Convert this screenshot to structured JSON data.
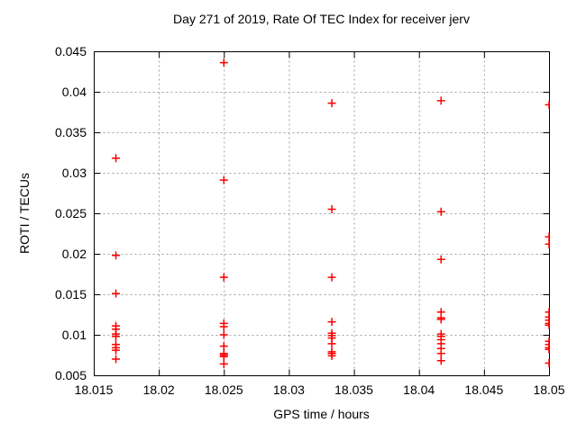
{
  "title": "Day 271 of 2019, Rate Of TEC Index for receiver jerv",
  "chart_data": {
    "type": "scatter",
    "title": "Day 271 of 2019, Rate Of TEC Index for receiver jerv",
    "xlabel": "GPS time / hours",
    "ylabel": "ROTI / TECUs",
    "xlim": [
      18.015,
      18.05
    ],
    "ylim": [
      0.005,
      0.045
    ],
    "x_tick_values": [
      18.015,
      18.02,
      18.025,
      18.03,
      18.035,
      18.04,
      18.045,
      18.05
    ],
    "x_tick_labels": [
      "18.015",
      "18.02",
      "18.025",
      "18.03",
      "18.035",
      "18.04",
      "18.045",
      "18.05"
    ],
    "y_tick_values": [
      0.005,
      0.01,
      0.015,
      0.02,
      0.025,
      0.03,
      0.035,
      0.04,
      0.045
    ],
    "y_tick_labels": [
      "0.005",
      "0.01",
      "0.015",
      "0.02",
      "0.025",
      "0.03",
      "0.035",
      "0.04",
      "0.045"
    ],
    "grid": true,
    "legend_position": "none",
    "marker": {
      "shape": "plus",
      "color": "#ff0000"
    },
    "grid_color": "#a0a0a0",
    "axis_color": "#000000",
    "series": [
      {
        "name": "ROTI",
        "points": [
          [
            18.0167,
            0.0318
          ],
          [
            18.0167,
            0.0198
          ],
          [
            18.0167,
            0.0151
          ],
          [
            18.0167,
            0.0111
          ],
          [
            18.0167,
            0.0107
          ],
          [
            18.0167,
            0.0101
          ],
          [
            18.0167,
            0.0098
          ],
          [
            18.0167,
            0.0088
          ],
          [
            18.0167,
            0.0084
          ],
          [
            18.0167,
            0.0081
          ],
          [
            18.0167,
            0.007
          ],
          [
            18.025,
            0.0436
          ],
          [
            18.025,
            0.0291
          ],
          [
            18.025,
            0.0171
          ],
          [
            18.025,
            0.0114
          ],
          [
            18.025,
            0.011
          ],
          [
            18.025,
            0.01
          ],
          [
            18.025,
            0.0086
          ],
          [
            18.025,
            0.0077
          ],
          [
            18.025,
            0.0075
          ],
          [
            18.025,
            0.0073
          ],
          [
            18.025,
            0.0064
          ],
          [
            18.0333,
            0.0386
          ],
          [
            18.0333,
            0.0255
          ],
          [
            18.0333,
            0.0171
          ],
          [
            18.0333,
            0.0116
          ],
          [
            18.0333,
            0.0102
          ],
          [
            18.0333,
            0.0099
          ],
          [
            18.0333,
            0.0096
          ],
          [
            18.0333,
            0.0089
          ],
          [
            18.0333,
            0.0079
          ],
          [
            18.0333,
            0.0077
          ],
          [
            18.0333,
            0.0074
          ],
          [
            18.0417,
            0.0389
          ],
          [
            18.0417,
            0.0252
          ],
          [
            18.0417,
            0.0193
          ],
          [
            18.0417,
            0.0128
          ],
          [
            18.0417,
            0.0121
          ],
          [
            18.0417,
            0.0119
          ],
          [
            18.0417,
            0.0101
          ],
          [
            18.0417,
            0.0098
          ],
          [
            18.0417,
            0.0094
          ],
          [
            18.0417,
            0.0089
          ],
          [
            18.0417,
            0.0083
          ],
          [
            18.0417,
            0.0077
          ],
          [
            18.0417,
            0.0068
          ],
          [
            18.05,
            0.0384
          ],
          [
            18.05,
            0.0221
          ],
          [
            18.05,
            0.0212
          ],
          [
            18.05,
            0.0128
          ],
          [
            18.05,
            0.0122
          ],
          [
            18.05,
            0.0118
          ],
          [
            18.05,
            0.0114
          ],
          [
            18.05,
            0.0112
          ],
          [
            18.05,
            0.0092
          ],
          [
            18.05,
            0.0088
          ],
          [
            18.05,
            0.0084
          ],
          [
            18.05,
            0.0082
          ],
          [
            18.05,
            0.0065
          ]
        ]
      }
    ]
  }
}
